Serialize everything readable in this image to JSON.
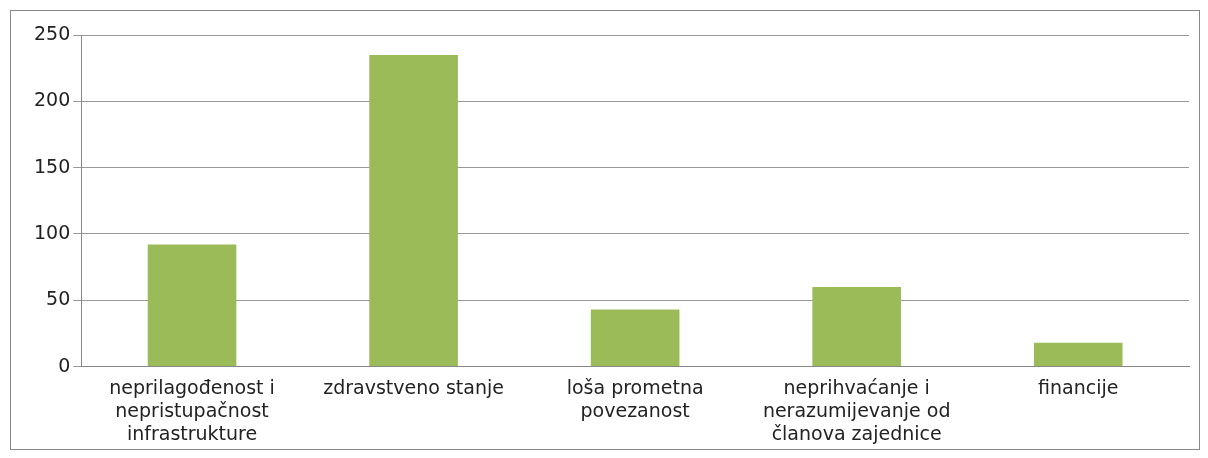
{
  "chart_data": {
    "type": "bar",
    "categories": [
      "neprilagođenost i nepristupačnost infrastrukture",
      "zdravstveno stanje",
      "loša prometna povezanost",
      "neprihvaćanje i nerazumijevanje od članova zajednice",
      "financije"
    ],
    "values": [
      92,
      235,
      43,
      60,
      18
    ],
    "color": "#9bbb59",
    "ylim": [
      0,
      250
    ],
    "yticks": [
      0,
      50,
      100,
      150,
      200,
      250
    ],
    "grid": "y",
    "legend": false
  }
}
